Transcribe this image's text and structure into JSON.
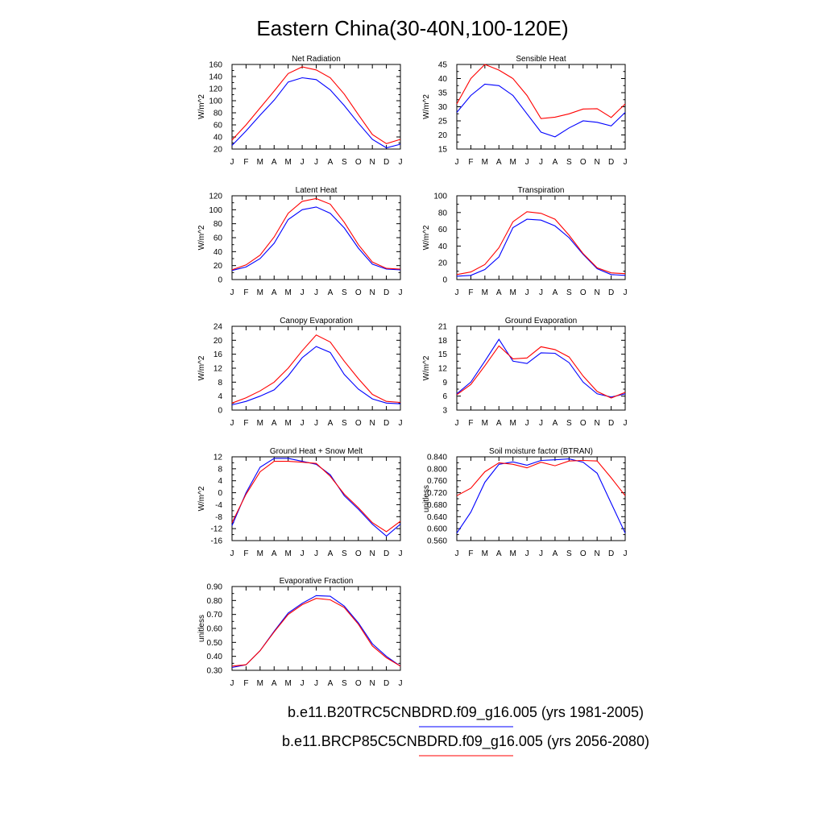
{
  "title": "Eastern China(30-40N,100-120E)",
  "legend": [
    {
      "label": "b.e11.B20TRC5CNBDRD.f09_g16.005 (yrs 1981-2005)",
      "color": "#0000ff"
    },
    {
      "label": "b.e11.BRCP85C5CNBDRD.f09_g16.005 (yrs 2056-2080)",
      "color": "#ff0000"
    }
  ],
  "chart_data": [
    {
      "type": "line",
      "title": "Net Radiation",
      "ylabel": "W/m^2",
      "x": [
        "J",
        "F",
        "M",
        "A",
        "M",
        "J",
        "J",
        "A",
        "S",
        "O",
        "N",
        "D",
        "J"
      ],
      "ylim": [
        20,
        160
      ],
      "yticks": [
        "20",
        "40",
        "60",
        "80",
        "100",
        "120",
        "140",
        "160"
      ],
      "series": [
        {
          "color": "#0000ff",
          "values": [
            26,
            50,
            76,
            101,
            131,
            138,
            135,
            118,
            92,
            63,
            36,
            22,
            28
          ]
        },
        {
          "color": "#ff0000",
          "values": [
            35,
            60,
            88,
            116,
            145,
            156,
            151,
            138,
            111,
            77,
            44,
            29,
            36
          ]
        }
      ]
    },
    {
      "type": "line",
      "title": "Sensible Heat",
      "ylabel": "W/m^2",
      "x": [
        "J",
        "F",
        "M",
        "A",
        "M",
        "J",
        "J",
        "A",
        "S",
        "O",
        "N",
        "D",
        "J"
      ],
      "ylim": [
        15,
        45
      ],
      "yticks": [
        "15",
        "20",
        "25",
        "30",
        "35",
        "40",
        "45"
      ],
      "series": [
        {
          "color": "#0000ff",
          "values": [
            28,
            34,
            38,
            37.5,
            34,
            27.5,
            21,
            19.3,
            22.5,
            25,
            24.5,
            23.2,
            28
          ]
        },
        {
          "color": "#ff0000",
          "values": [
            31,
            40,
            45,
            43,
            40,
            34,
            25.8,
            26.3,
            27.5,
            29.2,
            29.3,
            26.2,
            31
          ]
        }
      ]
    },
    {
      "type": "line",
      "title": "Latent Heat",
      "ylabel": "W/m^2",
      "x": [
        "J",
        "F",
        "M",
        "A",
        "M",
        "J",
        "J",
        "A",
        "S",
        "O",
        "N",
        "D",
        "J"
      ],
      "ylim": [
        0,
        120
      ],
      "yticks": [
        "0",
        "20",
        "40",
        "60",
        "80",
        "100",
        "120"
      ],
      "series": [
        {
          "color": "#0000ff",
          "values": [
            13,
            18,
            30,
            52,
            86,
            100,
            104,
            95,
            74,
            45,
            22,
            15,
            14
          ]
        },
        {
          "color": "#ff0000",
          "values": [
            14,
            21,
            35,
            61,
            95,
            112,
            116,
            108,
            82,
            50,
            25,
            16,
            15
          ]
        }
      ]
    },
    {
      "type": "line",
      "title": "Transpiration",
      "ylabel": "W/m^2",
      "x": [
        "J",
        "F",
        "M",
        "A",
        "M",
        "J",
        "J",
        "A",
        "S",
        "O",
        "N",
        "D",
        "J"
      ],
      "ylim": [
        0,
        100
      ],
      "yticks": [
        "0",
        "20",
        "40",
        "60",
        "80",
        "100"
      ],
      "series": [
        {
          "color": "#0000ff",
          "values": [
            4,
            5,
            12,
            27,
            62,
            72,
            71,
            64,
            50,
            30,
            13,
            6,
            5
          ]
        },
        {
          "color": "#ff0000",
          "values": [
            6,
            9,
            18,
            38,
            69,
            81,
            79,
            72,
            53,
            31,
            14,
            8,
            7
          ]
        }
      ]
    },
    {
      "type": "line",
      "title": "Canopy Evaporation",
      "ylabel": "W/m^2",
      "x": [
        "J",
        "F",
        "M",
        "A",
        "M",
        "J",
        "J",
        "A",
        "S",
        "O",
        "N",
        "D",
        "J"
      ],
      "ylim": [
        0,
        24
      ],
      "yticks": [
        "0",
        "4",
        "8",
        "12",
        "16",
        "20",
        "24"
      ],
      "series": [
        {
          "color": "#0000ff",
          "values": [
            1.5,
            2.5,
            4,
            5.8,
            9.8,
            15,
            18.2,
            16.5,
            10.2,
            6,
            3.2,
            2,
            1.8
          ]
        },
        {
          "color": "#ff0000",
          "values": [
            2,
            3.5,
            5.5,
            8,
            12,
            17,
            21.5,
            19.5,
            14,
            9,
            4.5,
            2.5,
            2.2
          ]
        }
      ]
    },
    {
      "type": "line",
      "title": "Ground Evaporation",
      "ylabel": "W/m^2",
      "x": [
        "J",
        "F",
        "M",
        "A",
        "M",
        "J",
        "J",
        "A",
        "S",
        "O",
        "N",
        "D",
        "J"
      ],
      "ylim": [
        3,
        21
      ],
      "yticks": [
        "3",
        "6",
        "9",
        "12",
        "15",
        "18",
        "21"
      ],
      "series": [
        {
          "color": "#0000ff",
          "values": [
            6.5,
            9,
            13.5,
            18.2,
            13.5,
            13,
            15.3,
            15.2,
            13.2,
            9,
            6.5,
            5.8,
            6.5
          ]
        },
        {
          "color": "#ff0000",
          "values": [
            6.3,
            8.5,
            12.5,
            16.8,
            14,
            14.2,
            16.6,
            16,
            14.4,
            10.3,
            7,
            5.6,
            6.8
          ]
        }
      ]
    },
    {
      "type": "line",
      "title": "Ground Heat + Snow Melt",
      "ylabel": "W/m^2",
      "x": [
        "J",
        "F",
        "M",
        "A",
        "M",
        "J",
        "J",
        "A",
        "S",
        "O",
        "N",
        "D",
        "J"
      ],
      "ylim": [
        -16,
        12
      ],
      "yticks": [
        "-16",
        "-12",
        "-8",
        "-4",
        "0",
        "4",
        "8",
        "12"
      ],
      "series": [
        {
          "color": "#0000ff",
          "values": [
            -11,
            0,
            8.5,
            11.5,
            11.5,
            10.5,
            9.5,
            6,
            -1,
            -5.5,
            -10.5,
            -14.5,
            -10.5
          ]
        },
        {
          "color": "#ff0000",
          "values": [
            -10,
            -0.5,
            7,
            10.5,
            10.5,
            10.2,
            9.8,
            5.5,
            -0.5,
            -5,
            -10,
            -13,
            -9.5
          ]
        }
      ]
    },
    {
      "type": "line",
      "title": "Soil moisture factor (BTRAN)",
      "ylabel": "unitless",
      "x": [
        "J",
        "F",
        "M",
        "A",
        "M",
        "J",
        "J",
        "A",
        "S",
        "O",
        "N",
        "D",
        "J"
      ],
      "ylim": [
        0.56,
        0.84
      ],
      "yticks": [
        "0.560",
        "0.600",
        "0.640",
        "0.680",
        "0.720",
        "0.760",
        "0.800",
        "0.840"
      ],
      "series": [
        {
          "color": "#0000ff",
          "values": [
            0.585,
            0.655,
            0.755,
            0.815,
            0.823,
            0.812,
            0.828,
            0.83,
            0.833,
            0.822,
            0.785,
            0.685,
            0.585
          ]
        },
        {
          "color": "#ff0000",
          "values": [
            0.71,
            0.735,
            0.79,
            0.82,
            0.815,
            0.803,
            0.822,
            0.81,
            0.826,
            0.828,
            0.826,
            0.77,
            0.71
          ]
        }
      ]
    },
    {
      "type": "line",
      "title": "Evaporative Fraction",
      "ylabel": "unitless",
      "x": [
        "J",
        "F",
        "M",
        "A",
        "M",
        "J",
        "J",
        "A",
        "S",
        "O",
        "N",
        "D",
        "J"
      ],
      "ylim": [
        0.3,
        0.9
      ],
      "yticks": [
        "0.30",
        "0.40",
        "0.50",
        "0.60",
        "0.70",
        "0.80",
        "0.90"
      ],
      "series": [
        {
          "color": "#0000ff",
          "values": [
            0.32,
            0.34,
            0.44,
            0.58,
            0.71,
            0.78,
            0.835,
            0.83,
            0.76,
            0.64,
            0.49,
            0.4,
            0.33
          ]
        },
        {
          "color": "#ff0000",
          "values": [
            0.33,
            0.34,
            0.44,
            0.575,
            0.7,
            0.77,
            0.815,
            0.805,
            0.75,
            0.63,
            0.475,
            0.39,
            0.33
          ]
        }
      ]
    }
  ]
}
